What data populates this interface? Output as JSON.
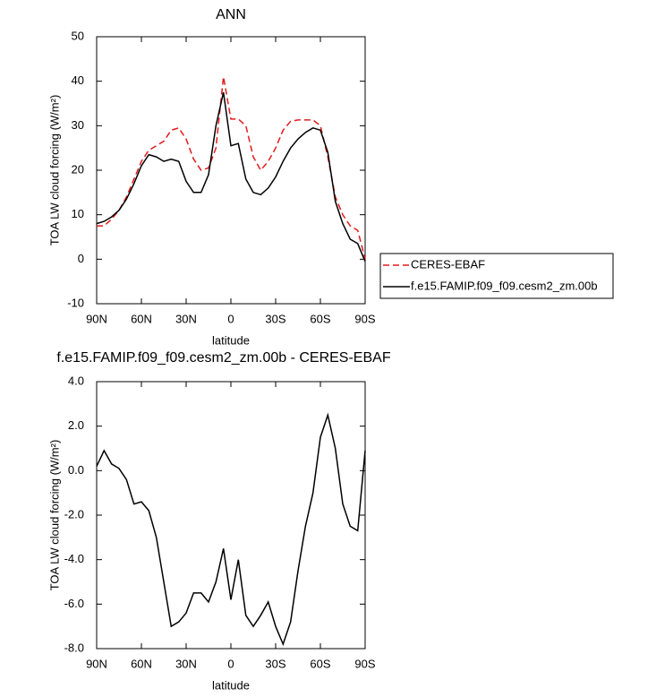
{
  "chart_data": [
    {
      "type": "line",
      "title": "ANN",
      "xlabel": "latitude",
      "ylabel": "TOA LW cloud forcing (W/m²)",
      "x": [
        90,
        85,
        80,
        75,
        70,
        65,
        60,
        55,
        50,
        45,
        40,
        35,
        30,
        25,
        20,
        15,
        10,
        5,
        0,
        -5,
        -10,
        -15,
        -20,
        -25,
        -30,
        -35,
        -40,
        -45,
        -50,
        -55,
        -60,
        -65,
        -70,
        -75,
        -80,
        -85,
        -90
      ],
      "xlim": [
        90,
        -90
      ],
      "xticks": [
        {
          "value": 90,
          "label": "90N"
        },
        {
          "value": 60,
          "label": "60N"
        },
        {
          "value": 30,
          "label": "30N"
        },
        0,
        {
          "value": -30,
          "label": "30S"
        },
        {
          "value": -60,
          "label": "60S"
        },
        {
          "value": -90,
          "label": "90S"
        }
      ],
      "ylim": [
        -10,
        50
      ],
      "yticks": [
        -10,
        0,
        10,
        20,
        30,
        40,
        50
      ],
      "legend": "right",
      "series": [
        {
          "name": "CERES-EBAF",
          "color": "#e41a1c",
          "style": "dashed",
          "values": [
            7.5,
            7.5,
            9,
            11,
            14,
            18,
            22,
            24.5,
            25.5,
            26.5,
            29,
            29.5,
            27,
            22.5,
            20,
            20.5,
            25,
            41,
            31.5,
            31.5,
            30,
            23,
            20,
            22,
            25,
            29,
            31,
            31.3,
            31.3,
            31.3,
            30,
            23,
            14,
            10,
            7.5,
            6.5,
            0
          ]
        },
        {
          "name": "f.e15.FAMIP.f09_f09.cesm2_zm.00b",
          "color": "#000000",
          "style": "solid",
          "values": [
            8,
            8.5,
            9.5,
            11,
            13.5,
            17,
            21,
            23.5,
            23,
            22,
            22.5,
            22,
            17.5,
            15,
            15,
            19,
            30,
            37.5,
            25.5,
            26,
            18,
            15,
            14.5,
            16,
            18.5,
            22,
            25,
            27,
            28.5,
            29.5,
            29,
            24,
            13,
            8,
            4.5,
            3.5,
            -0.5
          ]
        }
      ]
    },
    {
      "type": "line",
      "title": "f.e15.FAMIP.f09_f09.cesm2_zm.00b - CERES-EBAF",
      "xlabel": "latitude",
      "ylabel": "TOA LW cloud forcing (W/m²)",
      "x": [
        90,
        85,
        80,
        75,
        70,
        65,
        60,
        55,
        50,
        45,
        40,
        35,
        30,
        25,
        20,
        15,
        10,
        5,
        0,
        -5,
        -10,
        -15,
        -20,
        -25,
        -30,
        -35,
        -40,
        -45,
        -50,
        -55,
        -60,
        -65,
        -70,
        -75,
        -80,
        -85,
        -90
      ],
      "xlim": [
        90,
        -90
      ],
      "xticks": [
        {
          "value": 90,
          "label": "90N"
        },
        {
          "value": 60,
          "label": "60N"
        },
        {
          "value": 30,
          "label": "30N"
        },
        0,
        {
          "value": -30,
          "label": "30S"
        },
        {
          "value": -60,
          "label": "60S"
        },
        {
          "value": -90,
          "label": "90S"
        }
      ],
      "ylim": [
        -8,
        4
      ],
      "yticks": [
        {
          "value": -8,
          "label": "-8.0"
        },
        {
          "value": -6,
          "label": "-6.0"
        },
        {
          "value": -4,
          "label": "-4.0"
        },
        {
          "value": -2,
          "label": "-2.0"
        },
        {
          "value": 0,
          "label": "0.0"
        },
        {
          "value": 2,
          "label": "2.0"
        },
        {
          "value": 4,
          "label": "4.0"
        }
      ],
      "series": [
        {
          "color": "#000000",
          "style": "solid",
          "values": [
            0.2,
            0.9,
            0.3,
            0.1,
            -0.4,
            -1.5,
            -1.4,
            -1.8,
            -3.0,
            -5.0,
            -7.0,
            -6.8,
            -6.4,
            -5.5,
            -5.5,
            -5.9,
            -5.0,
            -3.5,
            -5.8,
            -4.0,
            -6.5,
            -7.0,
            -6.5,
            -5.9,
            -7.0,
            -7.8,
            -6.8,
            -4.5,
            -2.5,
            -1.0,
            1.5,
            2.5,
            1.0,
            -1.5,
            -2.5,
            -2.7,
            0.9
          ]
        }
      ]
    }
  ]
}
